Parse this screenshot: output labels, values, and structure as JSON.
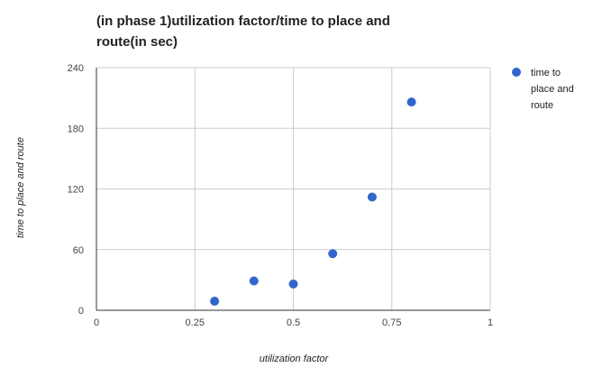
{
  "chart_data": {
    "type": "scatter",
    "title": "(in phase 1)utilization factor/time to place and route(in sec)",
    "xlabel": "utilization factor",
    "ylabel": "time to place and route",
    "xlim": [
      0,
      1
    ],
    "ylim": [
      0,
      240
    ],
    "x_ticks": [
      "0",
      "0.25",
      "0.5",
      "0.75",
      "1"
    ],
    "y_ticks": [
      "0",
      "60",
      "120",
      "180",
      "240"
    ],
    "grid": true,
    "legend_position": "right",
    "series": [
      {
        "name": "time to place and route",
        "color": "#3366cc",
        "points": [
          {
            "x": 0.3,
            "y": 9
          },
          {
            "x": 0.4,
            "y": 29
          },
          {
            "x": 0.5,
            "y": 26
          },
          {
            "x": 0.6,
            "y": 56
          },
          {
            "x": 0.7,
            "y": 112
          },
          {
            "x": 0.8,
            "y": 206
          }
        ]
      }
    ]
  }
}
